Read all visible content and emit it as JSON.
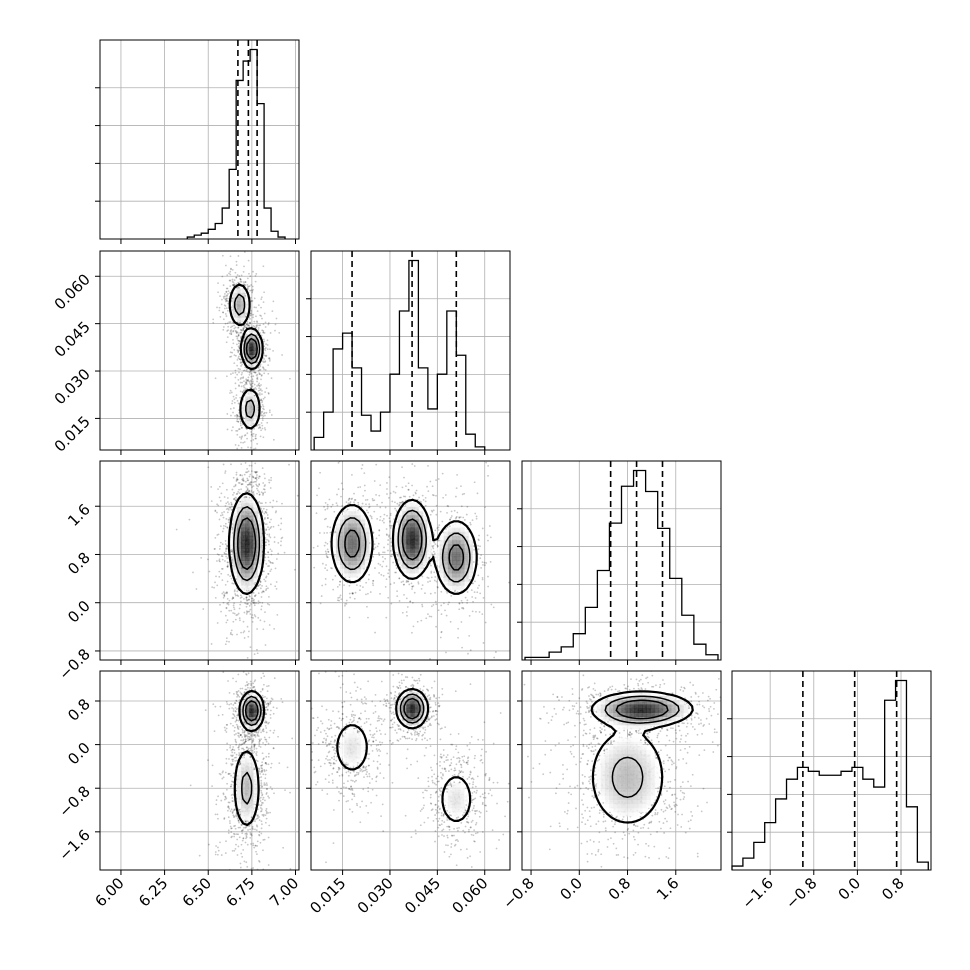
{
  "chart_data": {
    "type": "corner",
    "grid": true,
    "title": "",
    "parameters": [
      {
        "index": 0,
        "range": [
          5.88,
          7.02
        ],
        "ticks": [
          6.0,
          6.25,
          6.5,
          6.75,
          7.0
        ],
        "tick_labels": [
          "6.00",
          "6.25",
          "6.50",
          "6.75",
          "7.00"
        ],
        "quantiles": [
          6.67,
          6.73,
          6.78
        ]
      },
      {
        "index": 1,
        "range": [
          0.005,
          0.068
        ],
        "ticks": [
          0.015,
          0.03,
          0.045,
          0.06
        ],
        "tick_labels": [
          "0.015",
          "0.030",
          "0.045",
          "0.060"
        ],
        "quantiles": [
          0.018,
          0.037,
          0.051
        ]
      },
      {
        "index": 2,
        "range": [
          -0.95,
          2.35
        ],
        "ticks": [
          -0.8,
          0.0,
          0.8,
          1.6
        ],
        "tick_labels": [
          "−0.8",
          "0.0",
          "0.8",
          "1.6"
        ],
        "quantiles": [
          0.52,
          0.95,
          1.38
        ]
      },
      {
        "index": 3,
        "range": [
          -2.3,
          1.35
        ],
        "ticks": [
          -1.6,
          -0.8,
          0.0,
          0.8
        ],
        "tick_labels": [
          "−1.6",
          "−0.8",
          "0.0",
          "0.8"
        ],
        "quantiles": [
          -1.0,
          -0.05,
          0.72
        ]
      }
    ],
    "histograms": [
      {
        "param": 0,
        "x": [
          6.4,
          6.44,
          6.48,
          6.52,
          6.56,
          6.6,
          6.64,
          6.68,
          6.72,
          6.76,
          6.8,
          6.84,
          6.88,
          6.92
        ],
        "values": [
          1,
          2,
          3,
          5,
          8,
          16,
          36,
          82,
          92,
          98,
          70,
          16,
          4,
          1
        ]
      },
      {
        "param": 1,
        "x": [
          0.0075,
          0.0105,
          0.0135,
          0.0165,
          0.0195,
          0.0225,
          0.0255,
          0.0285,
          0.0315,
          0.0345,
          0.0375,
          0.0405,
          0.0435,
          0.0465,
          0.0495,
          0.0525,
          0.0555,
          0.0585
        ],
        "values": [
          4,
          12,
          32,
          37,
          26,
          11,
          6,
          12,
          24,
          44,
          60,
          26,
          13,
          24,
          44,
          30,
          5,
          1
        ]
      },
      {
        "param": 2,
        "x": [
          -0.8,
          -0.6,
          -0.4,
          -0.2,
          0.0,
          0.2,
          0.4,
          0.6,
          0.8,
          1.0,
          1.2,
          1.4,
          1.6,
          1.8,
          2.0,
          2.2
        ],
        "values": [
          1,
          1,
          3,
          5,
          10,
          20,
          34,
          52,
          66,
          72,
          64,
          50,
          31,
          17,
          6,
          2
        ]
      },
      {
        "param": 3,
        "x": [
          -2.2,
          -2.0,
          -1.8,
          -1.6,
          -1.4,
          -1.2,
          -1.0,
          -0.8,
          -0.6,
          -0.4,
          -0.2,
          0.0,
          0.2,
          0.4,
          0.6,
          0.8,
          1.0,
          1.2
        ],
        "values": [
          2,
          6,
          14,
          24,
          36,
          46,
          52,
          50,
          48,
          48,
          50,
          52,
          46,
          42,
          86,
          96,
          32,
          4
        ]
      }
    ],
    "joint_2d": [
      {
        "x_param": 0,
        "y_param": 1,
        "modes": [
          {
            "x": 6.68,
            "y": 0.051,
            "sx": 0.035,
            "sy": 0.004,
            "w": 0.3
          },
          {
            "x": 6.75,
            "y": 0.037,
            "sx": 0.03,
            "sy": 0.0032,
            "w": 0.42
          },
          {
            "x": 6.74,
            "y": 0.018,
            "sx": 0.035,
            "sy": 0.004,
            "w": 0.28
          }
        ]
      },
      {
        "x_param": 0,
        "y_param": 2,
        "modes": [
          {
            "x": 6.72,
            "y": 0.98,
            "sx": 0.05,
            "sy": 0.42,
            "w": 1.0
          }
        ]
      },
      {
        "x_param": 1,
        "y_param": 2,
        "modes": [
          {
            "x": 0.018,
            "y": 0.98,
            "sx": 0.0035,
            "sy": 0.35,
            "w": 0.33
          },
          {
            "x": 0.037,
            "y": 1.05,
            "sx": 0.003,
            "sy": 0.33,
            "w": 0.36
          },
          {
            "x": 0.051,
            "y": 0.75,
            "sx": 0.0035,
            "sy": 0.33,
            "w": 0.31
          }
        ]
      },
      {
        "x_param": 0,
        "y_param": 3,
        "modes": [
          {
            "x": 6.75,
            "y": 0.62,
            "sx": 0.035,
            "sy": 0.18,
            "w": 0.42
          },
          {
            "x": 6.72,
            "y": -0.8,
            "sx": 0.045,
            "sy": 0.45,
            "w": 0.58
          }
        ]
      },
      {
        "x_param": 1,
        "y_param": 3,
        "modes": [
          {
            "x": 0.018,
            "y": -0.05,
            "sx": 0.004,
            "sy": 0.35,
            "w": 0.32
          },
          {
            "x": 0.037,
            "y": 0.66,
            "sx": 0.0025,
            "sy": 0.18,
            "w": 0.38
          },
          {
            "x": 0.051,
            "y": -1.0,
            "sx": 0.0038,
            "sy": 0.35,
            "w": 0.3
          }
        ]
      },
      {
        "x_param": 2,
        "y_param": 3,
        "modes": [
          {
            "x": 1.05,
            "y": 0.65,
            "sx": 0.42,
            "sy": 0.16,
            "w": 0.42
          },
          {
            "x": 0.8,
            "y": -0.6,
            "sx": 0.38,
            "sy": 0.55,
            "w": 0.58
          }
        ]
      }
    ]
  }
}
